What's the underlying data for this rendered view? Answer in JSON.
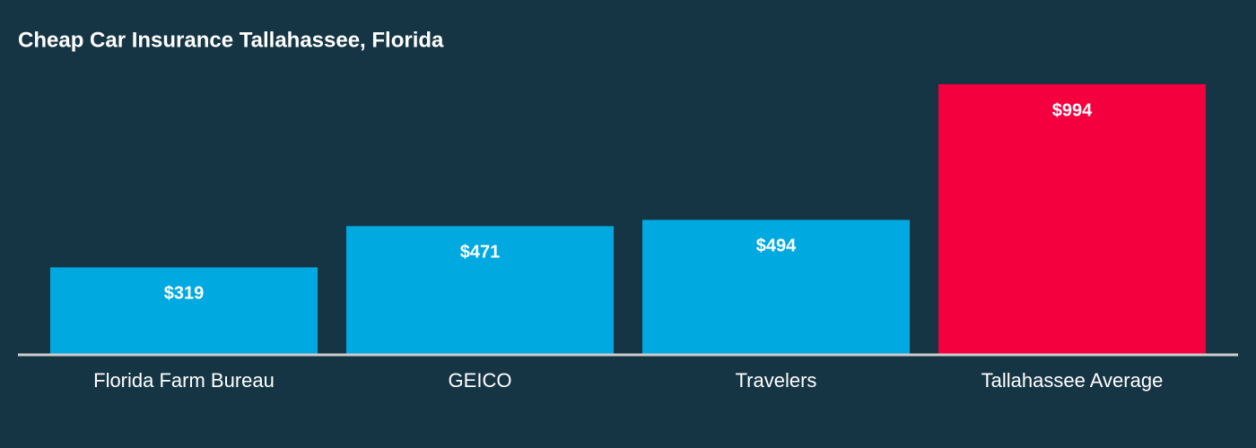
{
  "chart_data": {
    "type": "bar",
    "title": "Cheap Car Insurance Tallahassee, Florida",
    "categories": [
      "Florida Farm Bureau",
      "GEICO",
      "Travelers",
      "Tallahassee Average"
    ],
    "values": [
      319,
      471,
      494,
      994
    ],
    "value_labels": [
      "$319",
      "$471",
      "$494",
      "$994"
    ],
    "colors": [
      "#00a9e0",
      "#00a9e0",
      "#00a9e0",
      "#f5003f"
    ]
  }
}
